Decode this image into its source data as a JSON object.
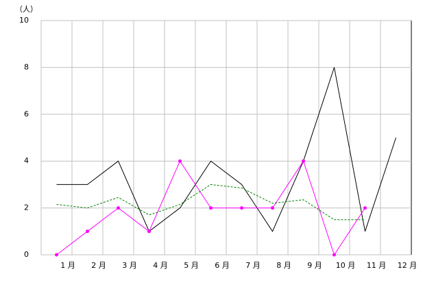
{
  "chart_data": {
    "type": "line",
    "unit_label": "（人）",
    "categories": [
      "1 月",
      "2 月",
      "3 月",
      "4 月",
      "5 月",
      "6 月",
      "7 月",
      "8 月",
      "9 月",
      "10 月",
      "11 月",
      "12 月"
    ],
    "series": [
      {
        "color": "#000000",
        "dash": false,
        "markers": false,
        "values": [
          3,
          3,
          4,
          1,
          2,
          4,
          3,
          1,
          4,
          8,
          1,
          5
        ]
      },
      {
        "color": "#ff00ff",
        "dash": false,
        "markers": true,
        "values": [
          0,
          1,
          2,
          1,
          4,
          2,
          2,
          2,
          4,
          0,
          2,
          null
        ]
      },
      {
        "color": "#008000",
        "dash": true,
        "markers": false,
        "values": [
          2.15,
          2.0,
          2.45,
          1.7,
          2.15,
          3.0,
          2.85,
          2.2,
          2.35,
          1.5,
          1.5,
          null
        ]
      }
    ],
    "ylim": [
      0,
      10
    ],
    "yticks": [
      0,
      2,
      4,
      6,
      8,
      10
    ],
    "grid": true
  }
}
